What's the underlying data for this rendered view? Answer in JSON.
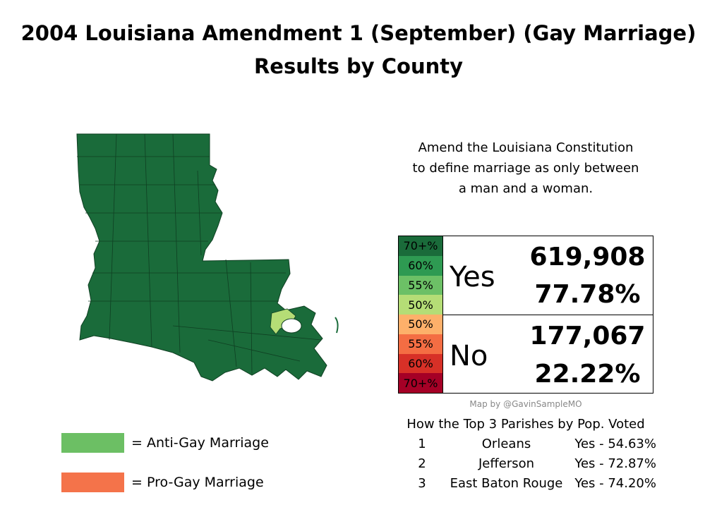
{
  "title": {
    "line1": "2004 Louisiana Amendment 1 (September) (Gay Marriage)",
    "line2": "Results by County"
  },
  "description": {
    "line1": "Amend the Louisiana Constitution",
    "line2": "to define marriage as only between",
    "line3": "a man and a woman."
  },
  "scale": {
    "yes": [
      {
        "label": "70+%",
        "color": "#1a6b3a"
      },
      {
        "label": "60%",
        "color": "#2e9a52"
      },
      {
        "label": "55%",
        "color": "#6cc066"
      },
      {
        "label": "50%",
        "color": "#b5dd76"
      }
    ],
    "no": [
      {
        "label": "50%",
        "color": "#fdb06a"
      },
      {
        "label": "55%",
        "color": "#f46d43"
      },
      {
        "label": "60%",
        "color": "#d73027"
      },
      {
        "label": "70+%",
        "color": "#a50026"
      }
    ]
  },
  "results": {
    "yes": {
      "label": "Yes",
      "votes": "619,908",
      "percent": "77.78%"
    },
    "no": {
      "label": "No",
      "votes": "177,067",
      "percent": "22.22%"
    }
  },
  "credit": "Map by @GavinSampleMO",
  "top_parishes": {
    "title": "How the Top 3 Parishes by Pop. Voted",
    "rows": [
      {
        "rank": "1",
        "name": "Orleans",
        "result": "Yes - 54.63%"
      },
      {
        "rank": "2",
        "name": "Jefferson",
        "result": "Yes - 72.87%"
      },
      {
        "rank": "3",
        "name": "East Baton Rouge",
        "result": "Yes - 74.20%"
      }
    ]
  },
  "legend": [
    {
      "label": "=  Anti-Gay Marriage",
      "color": "#6cbf64"
    },
    {
      "label": "=  Pro-Gay Marriage",
      "color": "#f4734a"
    }
  ],
  "map_colors": {
    "state_fill": "#1a6b3a",
    "orleans_fill": "#b5dd76",
    "water": "#ffffff",
    "border": "#0f3f22"
  }
}
